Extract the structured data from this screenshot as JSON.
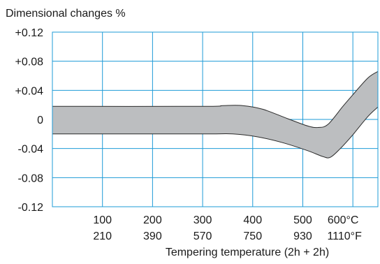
{
  "chart_data": {
    "type": "area",
    "title": "Dimensional changes %",
    "xlabel": "Tempering temperature (2h + 2h)",
    "ylabel": "",
    "xlim": [
      0,
      650
    ],
    "ylim": [
      -0.12,
      0.12
    ],
    "grid": true,
    "colors": {
      "plot_bg": "#ffffff",
      "grid": "#1e9bd7",
      "frame": "#1e9bd7",
      "band_fill": "#bcbec0",
      "band_stroke": "#2a2a2a"
    },
    "y_ticks": [
      {
        "value": 0.12,
        "label": "+0.12"
      },
      {
        "value": 0.08,
        "label": "+0.08"
      },
      {
        "value": 0.04,
        "label": "+0.04"
      },
      {
        "value": 0,
        "label": "0"
      },
      {
        "value": -0.04,
        "label": "-0.04"
      },
      {
        "value": -0.08,
        "label": "-0.08"
      },
      {
        "value": -0.12,
        "label": "-0.12"
      }
    ],
    "x_grid": [
      100,
      200,
      300,
      400,
      500,
      600
    ],
    "x_ticks_celsius": [
      {
        "value": 100,
        "label": "100"
      },
      {
        "value": 200,
        "label": "200"
      },
      {
        "value": 300,
        "label": "300"
      },
      {
        "value": 400,
        "label": "400"
      },
      {
        "value": 500,
        "label": "500"
      },
      {
        "value": 600,
        "label": "600°C"
      }
    ],
    "x_ticks_fahrenheit": [
      {
        "value": 100,
        "label": "210"
      },
      {
        "value": 200,
        "label": "390"
      },
      {
        "value": 300,
        "label": "570"
      },
      {
        "value": 400,
        "label": "750"
      },
      {
        "value": 500,
        "label": "930"
      },
      {
        "value": 600,
        "label": "1110°F"
      }
    ],
    "band": {
      "upper": [
        [
          0,
          0.018
        ],
        [
          300,
          0.018
        ],
        [
          340,
          0.019
        ],
        [
          380,
          0.019
        ],
        [
          420,
          0.014
        ],
        [
          470,
          0.001
        ],
        [
          510,
          -0.009
        ],
        [
          530,
          -0.011
        ],
        [
          550,
          -0.007
        ],
        [
          580,
          0.018
        ],
        [
          600,
          0.034
        ],
        [
          630,
          0.057
        ],
        [
          650,
          0.066
        ]
      ],
      "lower": [
        [
          0,
          -0.02
        ],
        [
          300,
          -0.02
        ],
        [
          360,
          -0.02
        ],
        [
          410,
          -0.024
        ],
        [
          460,
          -0.032
        ],
        [
          510,
          -0.043
        ],
        [
          540,
          -0.051
        ],
        [
          555,
          -0.052
        ],
        [
          575,
          -0.04
        ],
        [
          600,
          -0.021
        ],
        [
          630,
          0.004
        ],
        [
          650,
          0.017
        ]
      ]
    }
  }
}
